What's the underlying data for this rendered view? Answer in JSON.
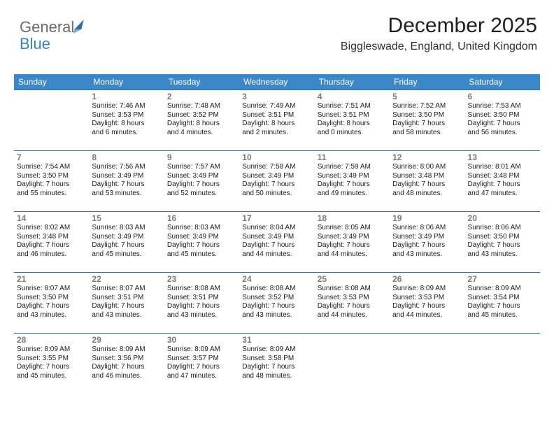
{
  "brand": {
    "word1": "General",
    "word2": "Blue"
  },
  "header": {
    "title": "December 2025",
    "location": "Biggleswade, England, United Kingdom"
  },
  "colors": {
    "header_bg": "#3b87c7",
    "header_text": "#ffffff",
    "row_rule": "#2f6fa4",
    "daynum": "#7a7a7a",
    "body_text": "#1a1a1a",
    "logo_grey": "#6b6b6b",
    "logo_blue": "#3b82c4"
  },
  "daysOfWeek": [
    "Sunday",
    "Monday",
    "Tuesday",
    "Wednesday",
    "Thursday",
    "Friday",
    "Saturday"
  ],
  "weeks": [
    [
      null,
      {
        "n": "1",
        "sr": "Sunrise: 7:46 AM",
        "ss": "Sunset: 3:53 PM",
        "d1": "Daylight: 8 hours",
        "d2": "and 6 minutes."
      },
      {
        "n": "2",
        "sr": "Sunrise: 7:48 AM",
        "ss": "Sunset: 3:52 PM",
        "d1": "Daylight: 8 hours",
        "d2": "and 4 minutes."
      },
      {
        "n": "3",
        "sr": "Sunrise: 7:49 AM",
        "ss": "Sunset: 3:51 PM",
        "d1": "Daylight: 8 hours",
        "d2": "and 2 minutes."
      },
      {
        "n": "4",
        "sr": "Sunrise: 7:51 AM",
        "ss": "Sunset: 3:51 PM",
        "d1": "Daylight: 8 hours",
        "d2": "and 0 minutes."
      },
      {
        "n": "5",
        "sr": "Sunrise: 7:52 AM",
        "ss": "Sunset: 3:50 PM",
        "d1": "Daylight: 7 hours",
        "d2": "and 58 minutes."
      },
      {
        "n": "6",
        "sr": "Sunrise: 7:53 AM",
        "ss": "Sunset: 3:50 PM",
        "d1": "Daylight: 7 hours",
        "d2": "and 56 minutes."
      }
    ],
    [
      {
        "n": "7",
        "sr": "Sunrise: 7:54 AM",
        "ss": "Sunset: 3:50 PM",
        "d1": "Daylight: 7 hours",
        "d2": "and 55 minutes."
      },
      {
        "n": "8",
        "sr": "Sunrise: 7:56 AM",
        "ss": "Sunset: 3:49 PM",
        "d1": "Daylight: 7 hours",
        "d2": "and 53 minutes."
      },
      {
        "n": "9",
        "sr": "Sunrise: 7:57 AM",
        "ss": "Sunset: 3:49 PM",
        "d1": "Daylight: 7 hours",
        "d2": "and 52 minutes."
      },
      {
        "n": "10",
        "sr": "Sunrise: 7:58 AM",
        "ss": "Sunset: 3:49 PM",
        "d1": "Daylight: 7 hours",
        "d2": "and 50 minutes."
      },
      {
        "n": "11",
        "sr": "Sunrise: 7:59 AM",
        "ss": "Sunset: 3:49 PM",
        "d1": "Daylight: 7 hours",
        "d2": "and 49 minutes."
      },
      {
        "n": "12",
        "sr": "Sunrise: 8:00 AM",
        "ss": "Sunset: 3:48 PM",
        "d1": "Daylight: 7 hours",
        "d2": "and 48 minutes."
      },
      {
        "n": "13",
        "sr": "Sunrise: 8:01 AM",
        "ss": "Sunset: 3:48 PM",
        "d1": "Daylight: 7 hours",
        "d2": "and 47 minutes."
      }
    ],
    [
      {
        "n": "14",
        "sr": "Sunrise: 8:02 AM",
        "ss": "Sunset: 3:48 PM",
        "d1": "Daylight: 7 hours",
        "d2": "and 46 minutes."
      },
      {
        "n": "15",
        "sr": "Sunrise: 8:03 AM",
        "ss": "Sunset: 3:49 PM",
        "d1": "Daylight: 7 hours",
        "d2": "and 45 minutes."
      },
      {
        "n": "16",
        "sr": "Sunrise: 8:03 AM",
        "ss": "Sunset: 3:49 PM",
        "d1": "Daylight: 7 hours",
        "d2": "and 45 minutes."
      },
      {
        "n": "17",
        "sr": "Sunrise: 8:04 AM",
        "ss": "Sunset: 3:49 PM",
        "d1": "Daylight: 7 hours",
        "d2": "and 44 minutes."
      },
      {
        "n": "18",
        "sr": "Sunrise: 8:05 AM",
        "ss": "Sunset: 3:49 PM",
        "d1": "Daylight: 7 hours",
        "d2": "and 44 minutes."
      },
      {
        "n": "19",
        "sr": "Sunrise: 8:06 AM",
        "ss": "Sunset: 3:49 PM",
        "d1": "Daylight: 7 hours",
        "d2": "and 43 minutes."
      },
      {
        "n": "20",
        "sr": "Sunrise: 8:06 AM",
        "ss": "Sunset: 3:50 PM",
        "d1": "Daylight: 7 hours",
        "d2": "and 43 minutes."
      }
    ],
    [
      {
        "n": "21",
        "sr": "Sunrise: 8:07 AM",
        "ss": "Sunset: 3:50 PM",
        "d1": "Daylight: 7 hours",
        "d2": "and 43 minutes."
      },
      {
        "n": "22",
        "sr": "Sunrise: 8:07 AM",
        "ss": "Sunset: 3:51 PM",
        "d1": "Daylight: 7 hours",
        "d2": "and 43 minutes."
      },
      {
        "n": "23",
        "sr": "Sunrise: 8:08 AM",
        "ss": "Sunset: 3:51 PM",
        "d1": "Daylight: 7 hours",
        "d2": "and 43 minutes."
      },
      {
        "n": "24",
        "sr": "Sunrise: 8:08 AM",
        "ss": "Sunset: 3:52 PM",
        "d1": "Daylight: 7 hours",
        "d2": "and 43 minutes."
      },
      {
        "n": "25",
        "sr": "Sunrise: 8:08 AM",
        "ss": "Sunset: 3:53 PM",
        "d1": "Daylight: 7 hours",
        "d2": "and 44 minutes."
      },
      {
        "n": "26",
        "sr": "Sunrise: 8:09 AM",
        "ss": "Sunset: 3:53 PM",
        "d1": "Daylight: 7 hours",
        "d2": "and 44 minutes."
      },
      {
        "n": "27",
        "sr": "Sunrise: 8:09 AM",
        "ss": "Sunset: 3:54 PM",
        "d1": "Daylight: 7 hours",
        "d2": "and 45 minutes."
      }
    ],
    [
      {
        "n": "28",
        "sr": "Sunrise: 8:09 AM",
        "ss": "Sunset: 3:55 PM",
        "d1": "Daylight: 7 hours",
        "d2": "and 45 minutes."
      },
      {
        "n": "29",
        "sr": "Sunrise: 8:09 AM",
        "ss": "Sunset: 3:56 PM",
        "d1": "Daylight: 7 hours",
        "d2": "and 46 minutes."
      },
      {
        "n": "30",
        "sr": "Sunrise: 8:09 AM",
        "ss": "Sunset: 3:57 PM",
        "d1": "Daylight: 7 hours",
        "d2": "and 47 minutes."
      },
      {
        "n": "31",
        "sr": "Sunrise: 8:09 AM",
        "ss": "Sunset: 3:58 PM",
        "d1": "Daylight: 7 hours",
        "d2": "and 48 minutes."
      },
      null,
      null,
      null
    ]
  ]
}
